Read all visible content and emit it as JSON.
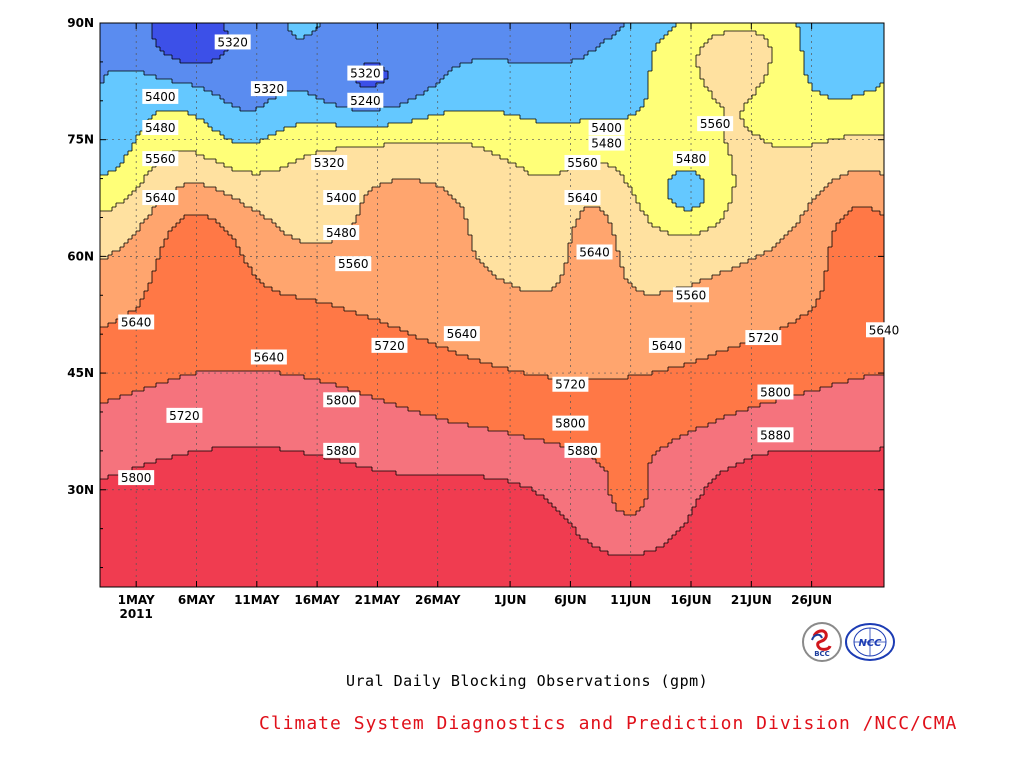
{
  "chart_data": {
    "type": "filled-contour",
    "title": "Ural Daily Blocking Observations (gpm)",
    "year_label": "2011",
    "x_ticks": [
      "1MAY",
      "6MAY",
      "11MAY",
      "16MAY",
      "21MAY",
      "26MAY",
      "1JUN",
      "6JUN",
      "11JUN",
      "16JUN",
      "21JUN",
      "26JUN"
    ],
    "y_ticks": [
      "90N",
      "75N",
      "60N",
      "45N",
      "30N"
    ],
    "levels": [
      5240,
      5320,
      5400,
      5480,
      5560,
      5640,
      5720,
      5800,
      5880
    ],
    "band_colors": [
      "#1414e6",
      "#3c50e8",
      "#5a8cf0",
      "#64c8ff",
      "#ffff78",
      "#ffe1a0",
      "#ffa56e",
      "#ff7846",
      "#f5737d",
      "#f03c50"
    ],
    "contour_labels": [
      {
        "day": 8,
        "lat": 87.5,
        "text": "5320"
      },
      {
        "day": 19,
        "lat": 83.5,
        "text": "5320"
      },
      {
        "day": 19,
        "lat": 80.0,
        "text": "5240"
      },
      {
        "day": 11,
        "lat": 81.5,
        "text": "5320"
      },
      {
        "day": 2,
        "lat": 80.5,
        "text": "5400"
      },
      {
        "day": 2,
        "lat": 76.5,
        "text": "5480"
      },
      {
        "day": 2,
        "lat": 72.5,
        "text": "5560"
      },
      {
        "day": 2,
        "lat": 67.5,
        "text": "5640"
      },
      {
        "day": 16,
        "lat": 72.0,
        "text": "5320"
      },
      {
        "day": 17,
        "lat": 67.5,
        "text": "5400"
      },
      {
        "day": 17,
        "lat": 63.0,
        "text": "5480"
      },
      {
        "day": 18,
        "lat": 59.0,
        "text": "5560"
      },
      {
        "day": 39,
        "lat": 76.5,
        "text": "5400"
      },
      {
        "day": 39,
        "lat": 74.5,
        "text": "5480"
      },
      {
        "day": 37,
        "lat": 72.0,
        "text": "5560"
      },
      {
        "day": 37,
        "lat": 67.5,
        "text": "5640"
      },
      {
        "day": 48,
        "lat": 77.0,
        "text": "5560"
      },
      {
        "day": 46,
        "lat": 72.5,
        "text": "5480"
      },
      {
        "day": 38,
        "lat": 60.5,
        "text": "5640"
      },
      {
        "day": 46,
        "lat": 55.0,
        "text": "5560"
      },
      {
        "day": 0,
        "lat": 51.5,
        "text": "5640"
      },
      {
        "day": 11,
        "lat": 47.0,
        "text": "5640"
      },
      {
        "day": 21,
        "lat": 48.5,
        "text": "5720"
      },
      {
        "day": 27,
        "lat": 50.0,
        "text": "5640"
      },
      {
        "day": 44,
        "lat": 48.5,
        "text": "5640"
      },
      {
        "day": 52,
        "lat": 49.5,
        "text": "5720"
      },
      {
        "day": 62,
        "lat": 50.5,
        "text": "5640"
      },
      {
        "day": 36,
        "lat": 43.5,
        "text": "5720"
      },
      {
        "day": 4,
        "lat": 39.5,
        "text": "5720"
      },
      {
        "day": 17,
        "lat": 41.5,
        "text": "5800"
      },
      {
        "day": 36,
        "lat": 38.5,
        "text": "5800"
      },
      {
        "day": 53,
        "lat": 42.5,
        "text": "5800"
      },
      {
        "day": 17,
        "lat": 35.0,
        "text": "5880"
      },
      {
        "day": 37,
        "lat": 35.0,
        "text": "5880"
      },
      {
        "day": 53,
        "lat": 37.0,
        "text": "5880"
      },
      {
        "day": 0,
        "lat": 31.5,
        "text": "5800"
      }
    ]
  },
  "footer": {
    "credit": "Climate System Diagnostics and Prediction Division /NCC/CMA",
    "logo_left_text": "BCC",
    "logo_right_text": "NCC"
  }
}
